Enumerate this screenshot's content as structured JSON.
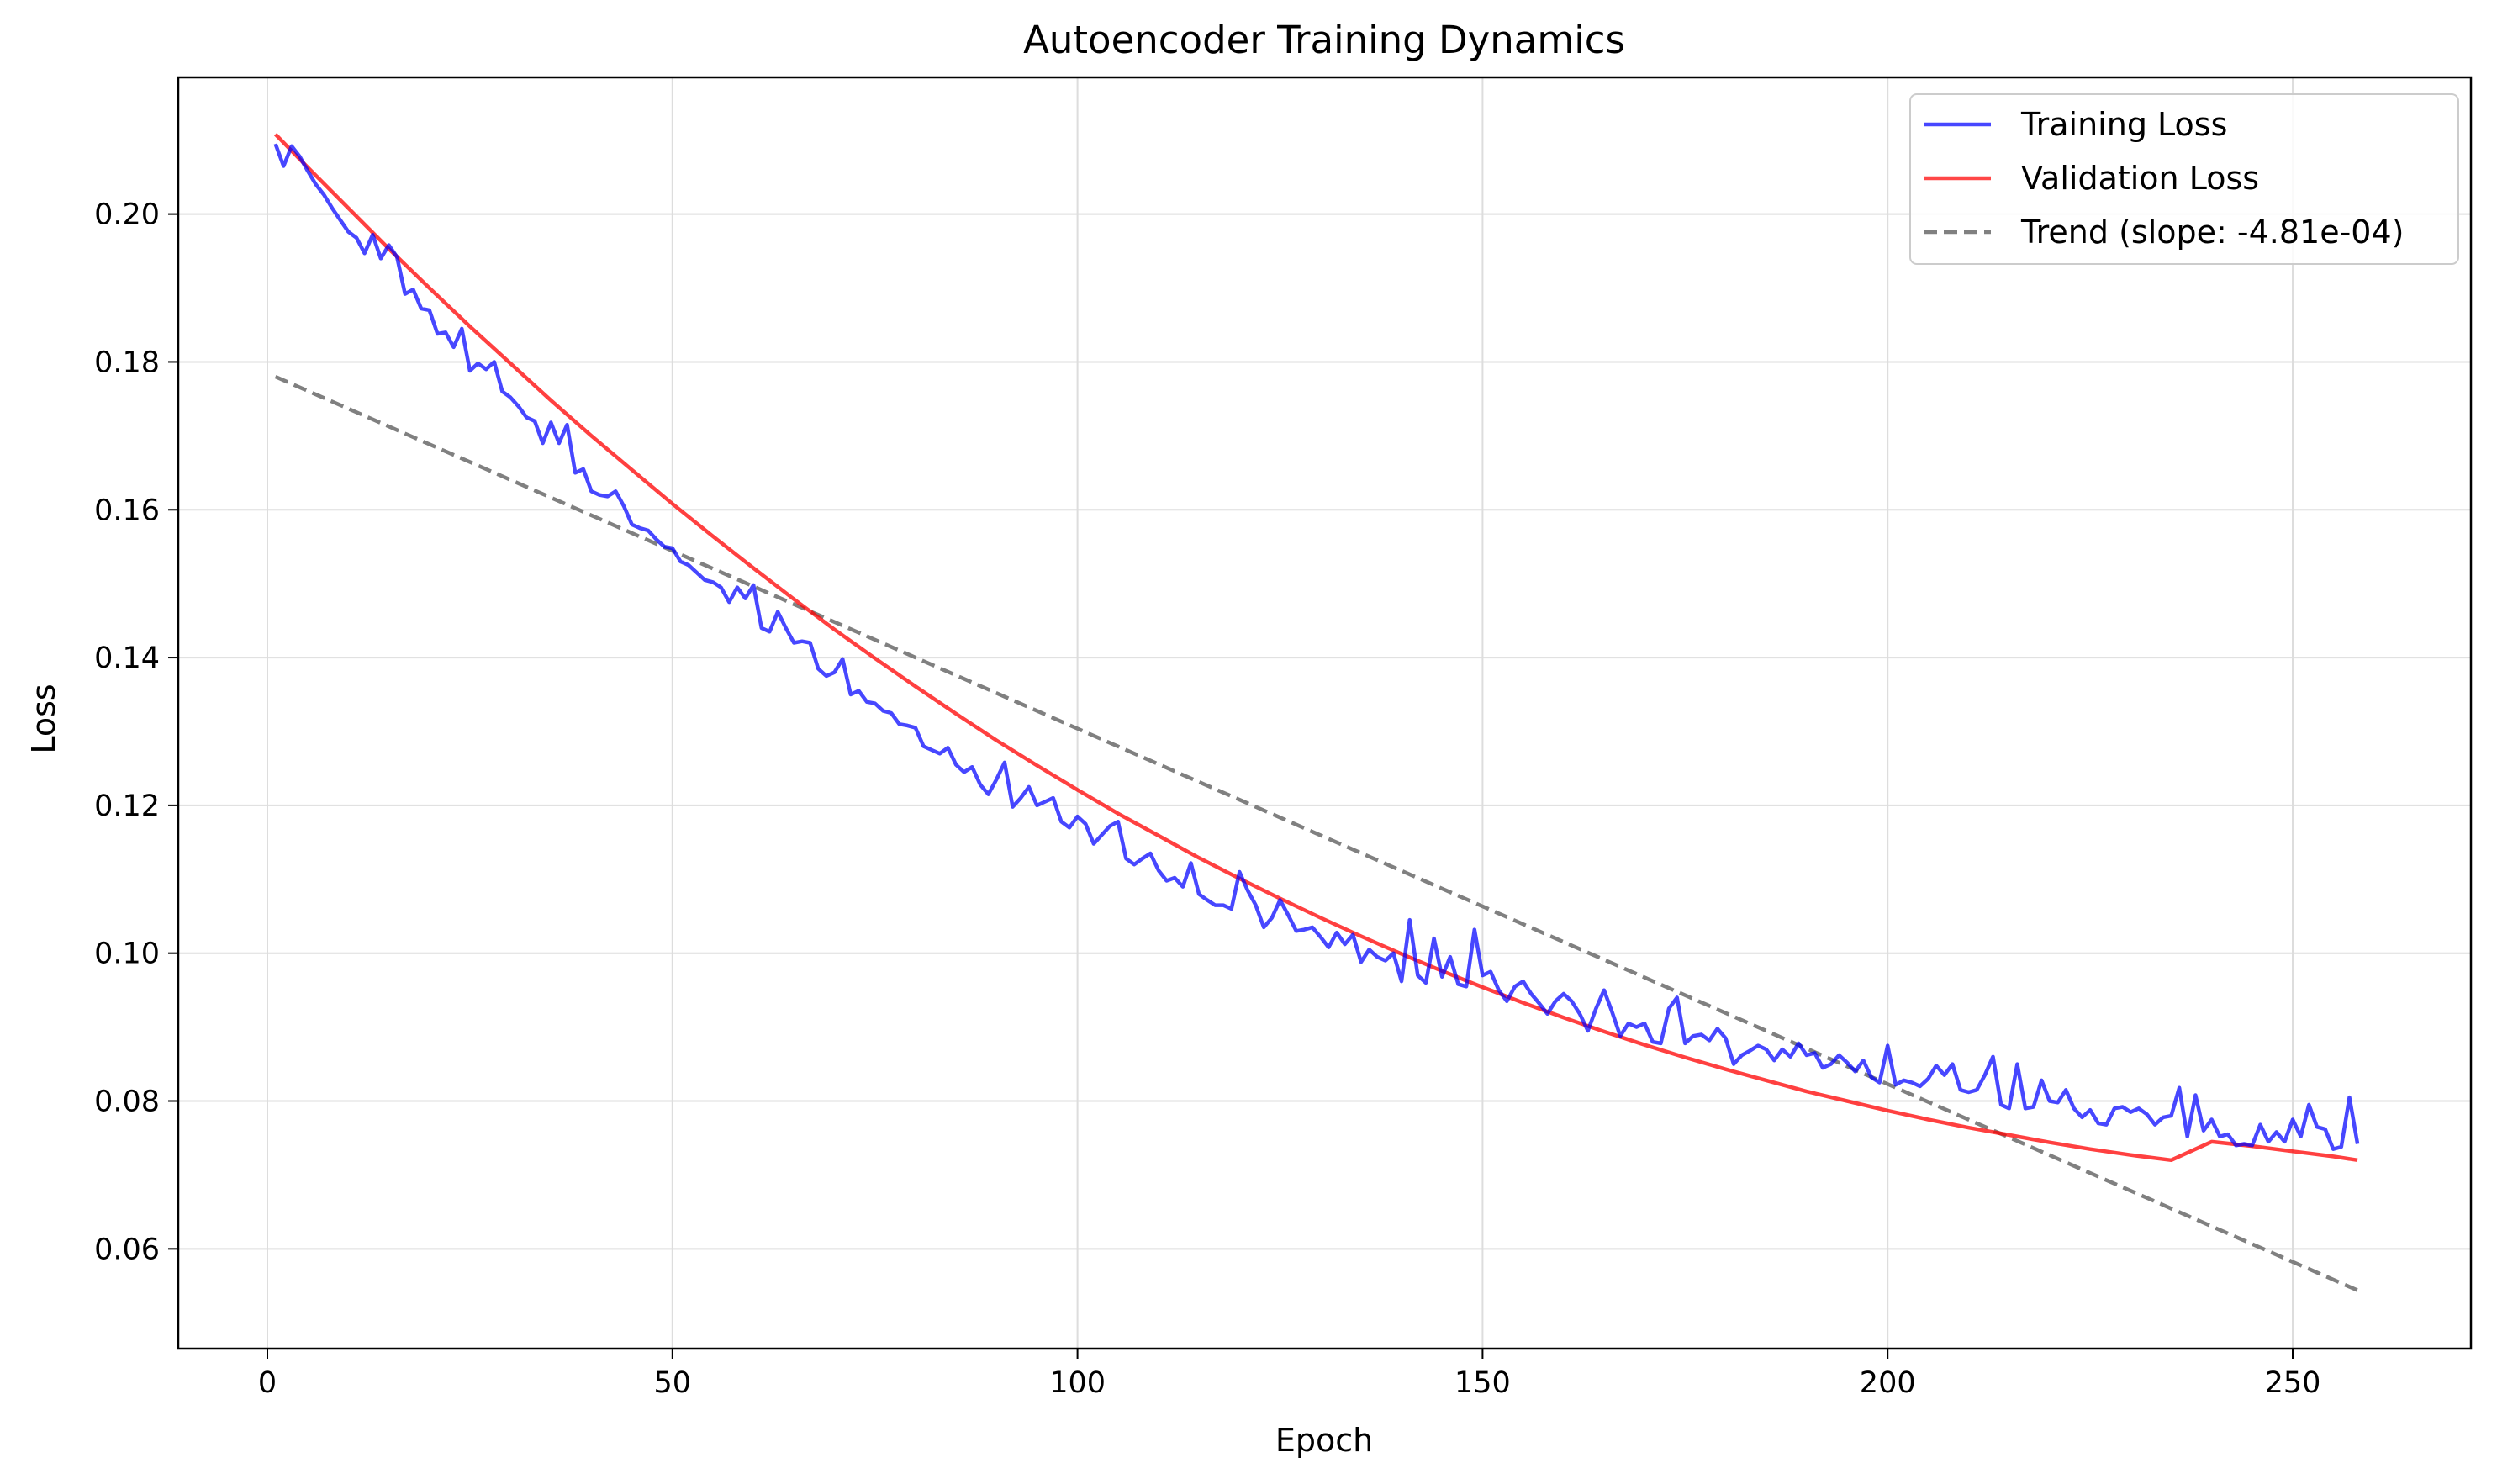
{
  "chart_data": {
    "type": "line",
    "title": "Autoencoder Training Dynamics",
    "xlabel": "Epoch",
    "ylabel": "Loss",
    "xlim": [
      -11,
      272
    ],
    "ylim": [
      0.0465,
      0.2185
    ],
    "xticks": [
      0,
      50,
      100,
      150,
      200,
      250
    ],
    "xtick_labels": [
      "0",
      "50",
      "100",
      "150",
      "200",
      "250"
    ],
    "yticks": [
      0.06,
      0.08,
      0.1,
      0.12,
      0.14,
      0.16,
      0.18,
      0.2
    ],
    "ytick_labels": [
      "0.06",
      "0.08",
      "0.10",
      "0.12",
      "0.14",
      "0.16",
      "0.18",
      "0.20"
    ],
    "grid": true,
    "legend_position": "top-right",
    "series": [
      {
        "name": "Training Loss",
        "color": "#0000ff",
        "style": "solid",
        "x": [
          1,
          2,
          3,
          4,
          5,
          6,
          7,
          8,
          9,
          10,
          11,
          12,
          13,
          14,
          15,
          16,
          17,
          18,
          19,
          20,
          21,
          22,
          23,
          24,
          25,
          26,
          27,
          28,
          29,
          30,
          31,
          32,
          33,
          34,
          35,
          36,
          37,
          38,
          39,
          40,
          41,
          42,
          43,
          44,
          45,
          46,
          47,
          48,
          49,
          50,
          51,
          52,
          53,
          54,
          55,
          56,
          57,
          58,
          59,
          60,
          61,
          62,
          63,
          64,
          65,
          66,
          67,
          68,
          69,
          70,
          71,
          72,
          73,
          74,
          75,
          76,
          77,
          78,
          79,
          80,
          81,
          82,
          83,
          84,
          85,
          86,
          87,
          88,
          89,
          90,
          91,
          92,
          93,
          94,
          95,
          96,
          97,
          98,
          99,
          100,
          101,
          102,
          103,
          104,
          105,
          106,
          107,
          108,
          109,
          110,
          111,
          112,
          113,
          114,
          115,
          116,
          117,
          118,
          119,
          120,
          121,
          122,
          123,
          124,
          125,
          126,
          127,
          128,
          129,
          130,
          131,
          132,
          133,
          134,
          135,
          136,
          137,
          138,
          139,
          140,
          141,
          142,
          143,
          144,
          145,
          146,
          147,
          148,
          149,
          150,
          151,
          152,
          153,
          154,
          155,
          156,
          157,
          158,
          159,
          160,
          161,
          162,
          163,
          164,
          165,
          166,
          167,
          168,
          169,
          170,
          171,
          172,
          173,
          174,
          175,
          176,
          177,
          178,
          179,
          180,
          181,
          182,
          183,
          184,
          185,
          186,
          187,
          188,
          189,
          190,
          191,
          192,
          193,
          194,
          195,
          196,
          197,
          198,
          199,
          200,
          201,
          202,
          203,
          204,
          205,
          206,
          207,
          208,
          209,
          210,
          211,
          212,
          213,
          214,
          215,
          216,
          217,
          218,
          219,
          220,
          221,
          222,
          223,
          224,
          225,
          226,
          227,
          228,
          229,
          230,
          231,
          232,
          233,
          234,
          235,
          236,
          237,
          238,
          239,
          240,
          241,
          242,
          243,
          244,
          245,
          246,
          247,
          248,
          249,
          250,
          251,
          252,
          253,
          254,
          255,
          256,
          257,
          258
        ],
        "values": [
          0.2095,
          0.2065,
          0.2092,
          0.2078,
          0.2058,
          0.204,
          0.2026,
          0.2008,
          0.1992,
          0.1976,
          0.1968,
          0.1947,
          0.1972,
          0.194,
          0.1958,
          0.1942,
          0.1892,
          0.1898,
          0.1872,
          0.187,
          0.1838,
          0.184,
          0.182,
          0.1845,
          0.1788,
          0.1798,
          0.179,
          0.18,
          0.176,
          0.1752,
          0.174,
          0.1725,
          0.172,
          0.169,
          0.1718,
          0.169,
          0.1715,
          0.165,
          0.1655,
          0.1625,
          0.162,
          0.1618,
          0.1625,
          0.1605,
          0.158,
          0.1575,
          0.1572,
          0.156,
          0.155,
          0.1548,
          0.153,
          0.1525,
          0.1515,
          0.1505,
          0.1502,
          0.1495,
          0.1475,
          0.1495,
          0.148,
          0.1498,
          0.144,
          0.1435,
          0.1462,
          0.144,
          0.142,
          0.1422,
          0.142,
          0.1385,
          0.1375,
          0.138,
          0.1398,
          0.135,
          0.1355,
          0.134,
          0.1338,
          0.1328,
          0.1325,
          0.131,
          0.1308,
          0.1305,
          0.128,
          0.1275,
          0.127,
          0.1278,
          0.1255,
          0.1245,
          0.1252,
          0.1228,
          0.1215,
          0.1235,
          0.1258,
          0.1198,
          0.121,
          0.1225,
          0.12,
          0.1205,
          0.121,
          0.1178,
          0.117,
          0.1185,
          0.1175,
          0.1148,
          0.116,
          0.1172,
          0.1178,
          0.1128,
          0.112,
          0.1128,
          0.1135,
          0.1112,
          0.1098,
          0.1102,
          0.109,
          0.1122,
          0.108,
          0.1072,
          0.1065,
          0.1065,
          0.106,
          0.111,
          0.1085,
          0.1065,
          0.1035,
          0.1048,
          0.1072,
          0.1052,
          0.103,
          0.1032,
          0.1035,
          0.1022,
          0.1008,
          0.1028,
          0.1012,
          0.1025,
          0.0988,
          0.1005,
          0.0995,
          0.099,
          0.1,
          0.0962,
          0.1045,
          0.097,
          0.096,
          0.102,
          0.0968,
          0.0995,
          0.0958,
          0.0955,
          0.1032,
          0.097,
          0.0975,
          0.095,
          0.0935,
          0.0955,
          0.0962,
          0.0945,
          0.0932,
          0.0918,
          0.0935,
          0.0945,
          0.0935,
          0.0918,
          0.0895,
          0.0925,
          0.095,
          0.092,
          0.0888,
          0.0905,
          0.09,
          0.0905,
          0.088,
          0.0878,
          0.0925,
          0.094,
          0.0878,
          0.0888,
          0.089,
          0.0882,
          0.0898,
          0.0885,
          0.085,
          0.0862,
          0.0868,
          0.0875,
          0.087,
          0.0855,
          0.087,
          0.086,
          0.0878,
          0.0862,
          0.0865,
          0.0845,
          0.085,
          0.0862,
          0.0852,
          0.084,
          0.0855,
          0.0832,
          0.0825,
          0.0875,
          0.0822,
          0.0828,
          0.0825,
          0.082,
          0.083,
          0.0848,
          0.0835,
          0.085,
          0.0815,
          0.0812,
          0.0815,
          0.0835,
          0.086,
          0.0795,
          0.079,
          0.085,
          0.079,
          0.0792,
          0.0828,
          0.08,
          0.0798,
          0.0815,
          0.079,
          0.0778,
          0.0788,
          0.077,
          0.0768,
          0.079,
          0.0792,
          0.0785,
          0.079,
          0.0782,
          0.0768,
          0.0778,
          0.078,
          0.0818,
          0.0752,
          0.0808,
          0.076,
          0.0775,
          0.0752,
          0.0755,
          0.074,
          0.0742,
          0.074,
          0.0768,
          0.0745,
          0.0758,
          0.0745,
          0.0775,
          0.0752,
          0.0795,
          0.0765,
          0.0762,
          0.0735,
          0.0738,
          0.0805,
          0.0742
        ]
      },
      {
        "name": "Validation Loss",
        "color": "#ff0000",
        "style": "solid",
        "x": [
          1,
          5,
          10,
          15,
          20,
          25,
          30,
          35,
          40,
          45,
          50,
          55,
          60,
          65,
          70,
          75,
          80,
          85,
          90,
          95,
          100,
          105,
          110,
          115,
          120,
          125,
          130,
          135,
          140,
          145,
          150,
          155,
          160,
          165,
          170,
          175,
          180,
          185,
          190,
          195,
          200,
          205,
          210,
          215,
          220,
          225,
          230,
          235,
          240,
          245,
          250,
          255,
          258
        ],
        "values": [
          0.2108,
          0.2063,
          0.2008,
          0.1953,
          0.19,
          0.1848,
          0.1798,
          0.1748,
          0.17,
          0.1654,
          0.1608,
          0.1564,
          0.1521,
          0.1479,
          0.1438,
          0.1399,
          0.1361,
          0.1324,
          0.1288,
          0.1254,
          0.1221,
          0.1189,
          0.1159,
          0.1129,
          0.1101,
          0.1074,
          0.1048,
          0.1023,
          0.0999,
          0.0976,
          0.0954,
          0.0933,
          0.0913,
          0.0894,
          0.0876,
          0.0859,
          0.0843,
          0.0828,
          0.0813,
          0.08,
          0.0787,
          0.0775,
          0.0764,
          0.0754,
          0.0744,
          0.0735,
          0.0727,
          0.072,
          0.0745,
          0.0739,
          0.0732,
          0.0725,
          0.072
        ]
      },
      {
        "name": "Trend (slope: -4.81e-04)",
        "color": "#808080",
        "style": "dashed",
        "x": [
          1,
          258
        ],
        "values": [
          0.178,
          0.0544
        ]
      }
    ]
  }
}
